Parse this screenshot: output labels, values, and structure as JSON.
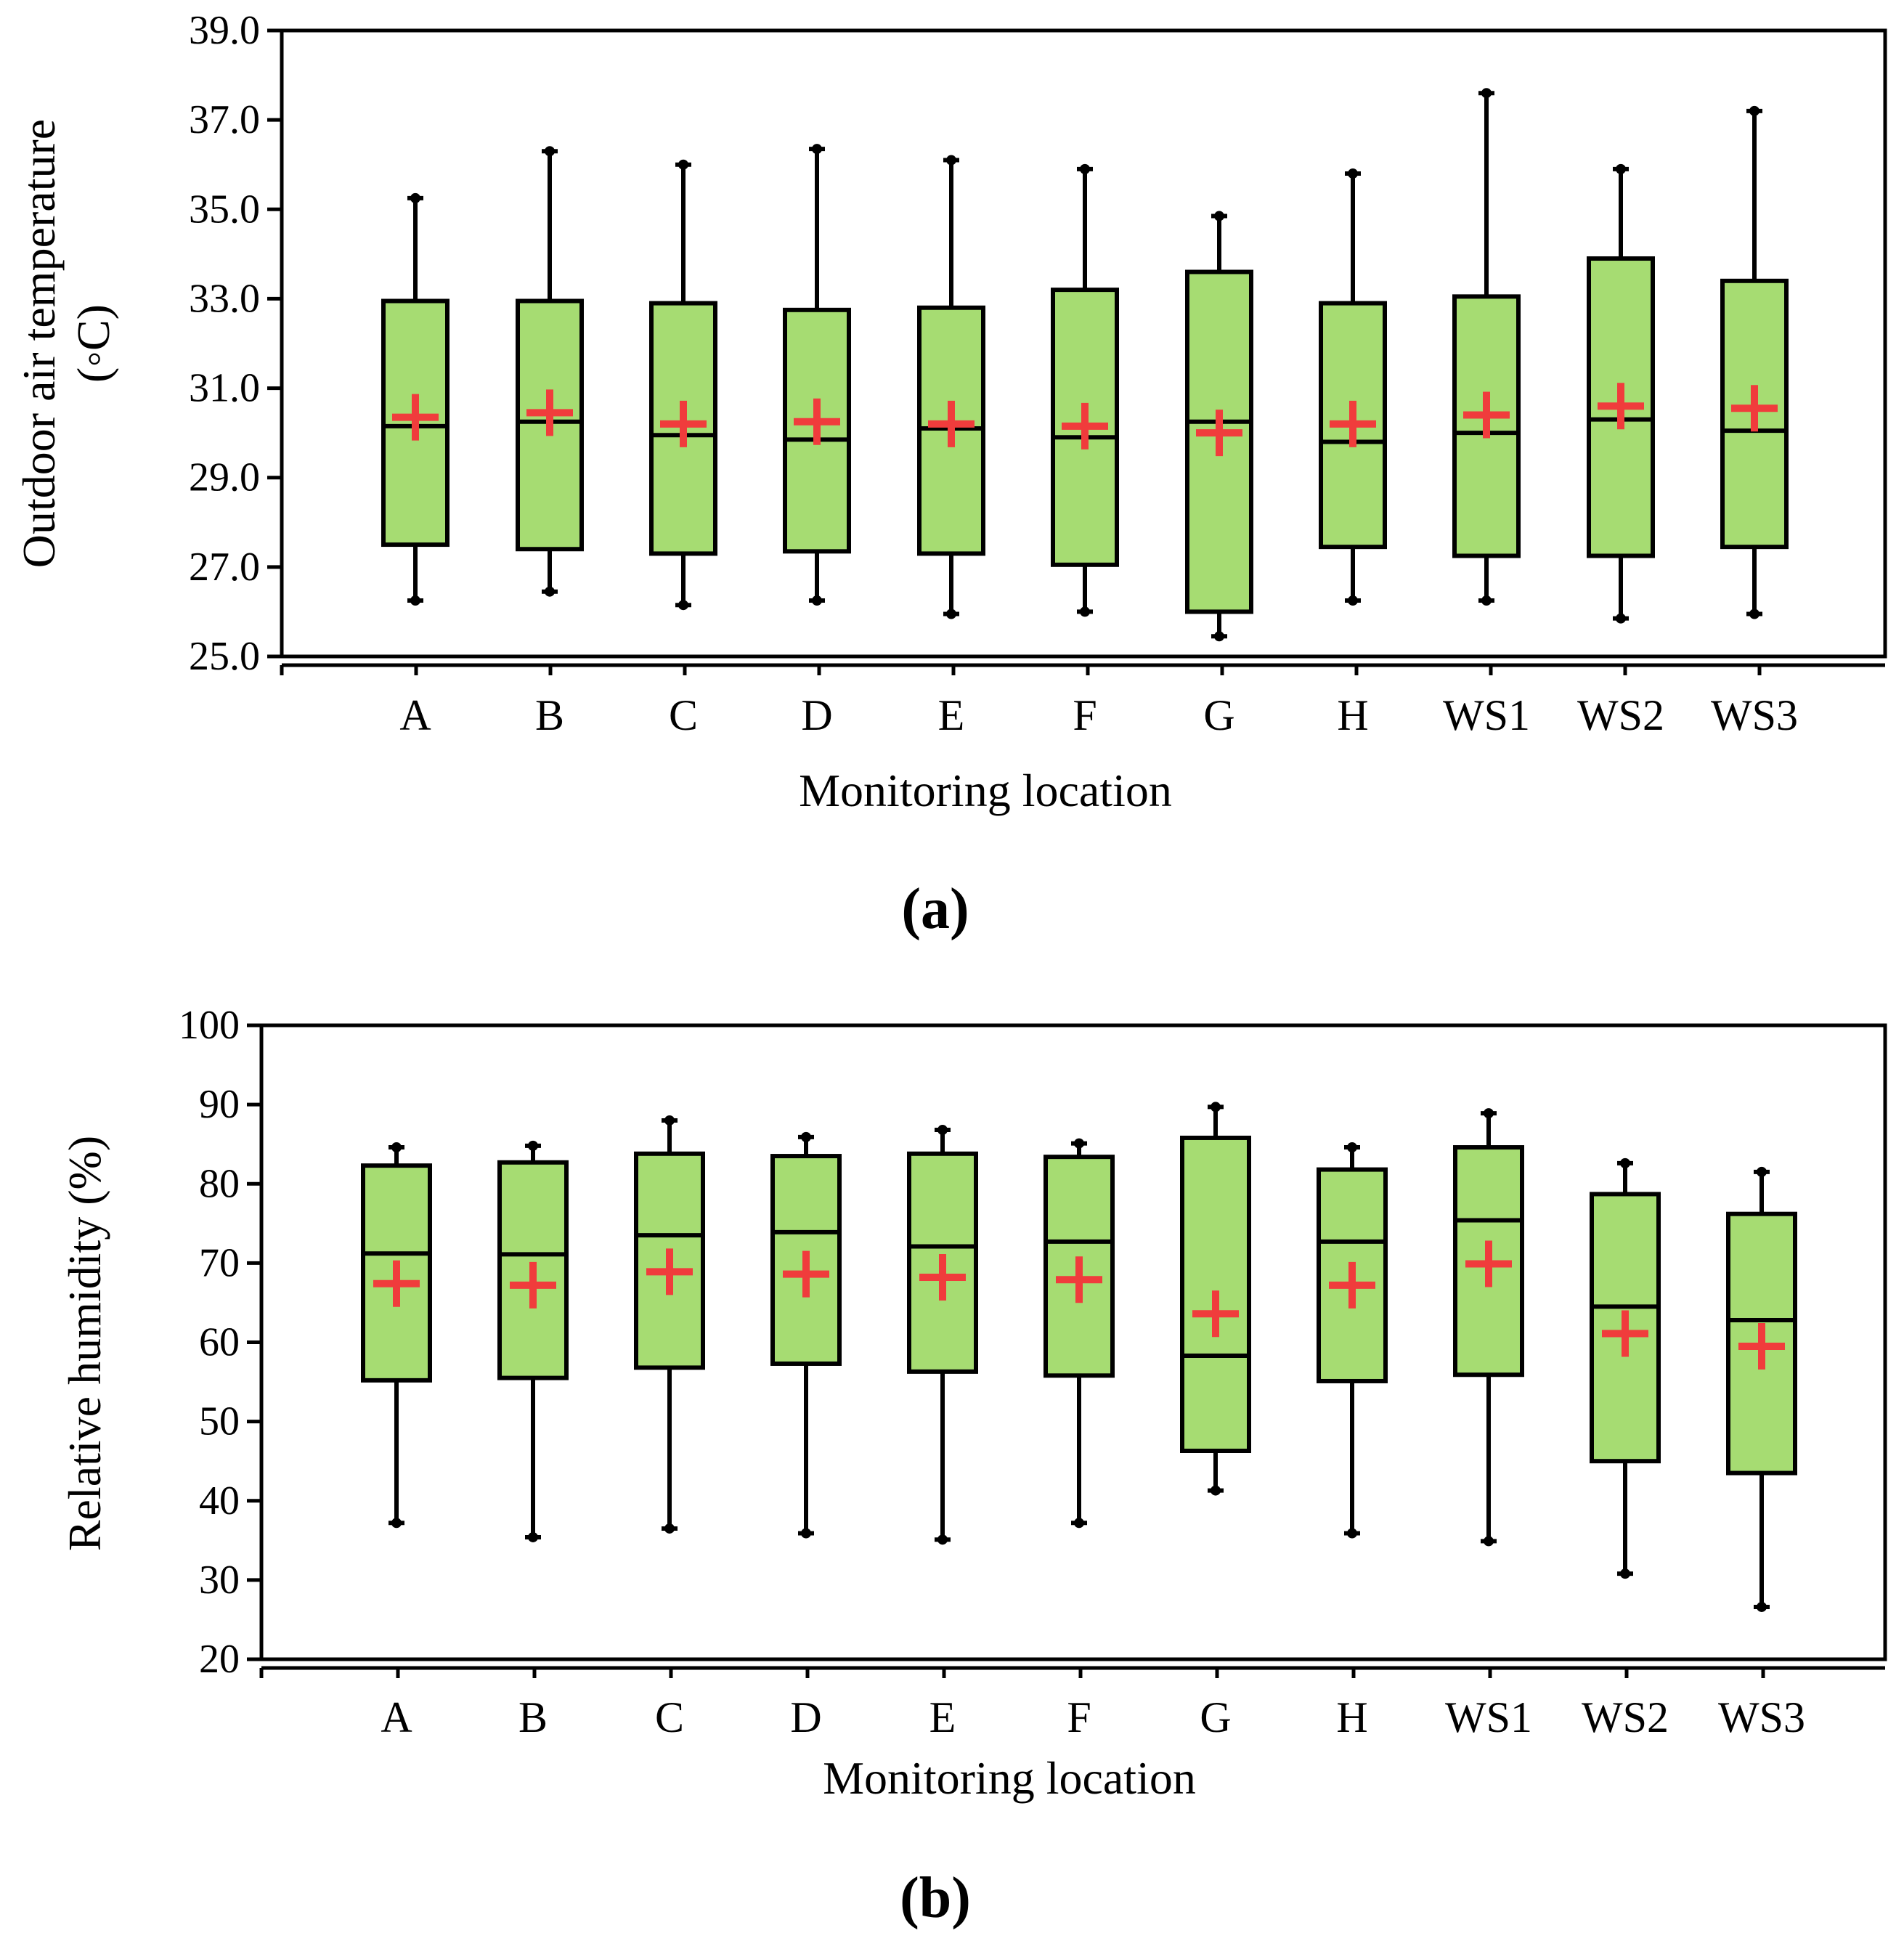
{
  "chart_data": [
    {
      "type": "boxplot",
      "panel_label": "(a)",
      "xlabel": "Monitoring location",
      "ylabel": "Outdoor air temperature",
      "ylabel_unit": "(◦C)",
      "ylim": [
        25.0,
        39.0
      ],
      "yticks": [
        25.0,
        27.0,
        29.0,
        31.0,
        33.0,
        35.0,
        37.0,
        39.0
      ],
      "ytick_labels": [
        "25.0",
        "27.0",
        "29.0",
        "31.0",
        "33.0",
        "35.0",
        "37.0",
        "39.0"
      ],
      "grid": false,
      "box_color": "#a6dc72",
      "mean_color": "#f03c3c",
      "categories": [
        "A",
        "B",
        "C",
        "D",
        "E",
        "F",
        "G",
        "H",
        "WS1",
        "WS2",
        "WS3"
      ],
      "series": [
        {
          "name": "A",
          "min": 26.25,
          "q1": 27.5,
          "median": 30.15,
          "q3": 32.95,
          "max": 35.25,
          "mean": 30.35
        },
        {
          "name": "B",
          "min": 26.45,
          "q1": 27.4,
          "median": 30.25,
          "q3": 32.95,
          "max": 36.3,
          "mean": 30.45
        },
        {
          "name": "C",
          "min": 26.15,
          "q1": 27.3,
          "median": 29.95,
          "q3": 32.9,
          "max": 36.0,
          "mean": 30.2
        },
        {
          "name": "D",
          "min": 26.25,
          "q1": 27.35,
          "median": 29.85,
          "q3": 32.75,
          "max": 36.35,
          "mean": 30.25
        },
        {
          "name": "E",
          "min": 25.95,
          "q1": 27.3,
          "median": 30.1,
          "q3": 32.8,
          "max": 36.1,
          "mean": 30.2
        },
        {
          "name": "F",
          "min": 26.0,
          "q1": 27.05,
          "median": 29.9,
          "q3": 33.2,
          "max": 35.9,
          "mean": 30.15
        },
        {
          "name": "G",
          "min": 25.45,
          "q1": 26.0,
          "median": 30.25,
          "q3": 33.6,
          "max": 34.85,
          "mean": 30.0
        },
        {
          "name": "H",
          "min": 26.25,
          "q1": 27.45,
          "median": 29.8,
          "q3": 32.9,
          "max": 35.8,
          "mean": 30.2
        },
        {
          "name": "WS1",
          "min": 26.25,
          "q1": 27.25,
          "median": 30.0,
          "q3": 33.05,
          "max": 37.6,
          "mean": 30.4
        },
        {
          "name": "WS2",
          "min": 25.85,
          "q1": 27.25,
          "median": 30.3,
          "q3": 33.9,
          "max": 35.9,
          "mean": 30.6
        },
        {
          "name": "WS3",
          "min": 25.95,
          "q1": 27.45,
          "median": 30.05,
          "q3": 33.4,
          "max": 37.2,
          "mean": 30.55
        }
      ]
    },
    {
      "type": "boxplot",
      "panel_label": "(b)",
      "xlabel": "Monitoring location",
      "ylabel": "Relative humidity (%)",
      "ylim": [
        20,
        100
      ],
      "yticks": [
        20,
        30,
        40,
        50,
        60,
        70,
        80,
        90,
        100
      ],
      "ytick_labels": [
        "20",
        "30",
        "40",
        "50",
        "60",
        "70",
        "80",
        "90",
        "100"
      ],
      "grid": false,
      "box_color": "#a6dc72",
      "mean_color": "#f03c3c",
      "categories": [
        "A",
        "B",
        "C",
        "D",
        "E",
        "F",
        "G",
        "H",
        "WS1",
        "WS2",
        "WS3"
      ],
      "series": [
        {
          "name": "A",
          "min": 37.2,
          "q1": 55.2,
          "median": 71.2,
          "q3": 82.3,
          "max": 84.6,
          "mean": 67.4
        },
        {
          "name": "B",
          "min": 35.4,
          "q1": 55.5,
          "median": 71.1,
          "q3": 82.7,
          "max": 84.8,
          "mean": 67.2
        },
        {
          "name": "C",
          "min": 36.5,
          "q1": 56.8,
          "median": 73.5,
          "q3": 83.8,
          "max": 88.0,
          "mean": 68.9
        },
        {
          "name": "D",
          "min": 35.9,
          "q1": 57.3,
          "median": 73.9,
          "q3": 83.5,
          "max": 85.9,
          "mean": 68.6
        },
        {
          "name": "E",
          "min": 35.1,
          "q1": 56.3,
          "median": 72.1,
          "q3": 83.8,
          "max": 86.8,
          "mean": 68.2
        },
        {
          "name": "F",
          "min": 37.2,
          "q1": 55.8,
          "median": 72.7,
          "q3": 83.4,
          "max": 85.1,
          "mean": 67.9
        },
        {
          "name": "G",
          "min": 41.3,
          "q1": 46.3,
          "median": 58.3,
          "q3": 85.8,
          "max": 89.7,
          "mean": 63.6
        },
        {
          "name": "H",
          "min": 35.9,
          "q1": 55.1,
          "median": 72.7,
          "q3": 81.8,
          "max": 84.6,
          "mean": 67.2
        },
        {
          "name": "WS1",
          "min": 34.9,
          "q1": 55.9,
          "median": 75.4,
          "q3": 84.6,
          "max": 88.9,
          "mean": 69.9
        },
        {
          "name": "WS2",
          "min": 30.8,
          "q1": 45.0,
          "median": 64.5,
          "q3": 78.7,
          "max": 82.6,
          "mean": 61.1
        },
        {
          "name": "WS3",
          "min": 26.6,
          "q1": 43.5,
          "median": 62.8,
          "q3": 76.2,
          "max": 81.5,
          "mean": 59.5
        }
      ]
    }
  ]
}
